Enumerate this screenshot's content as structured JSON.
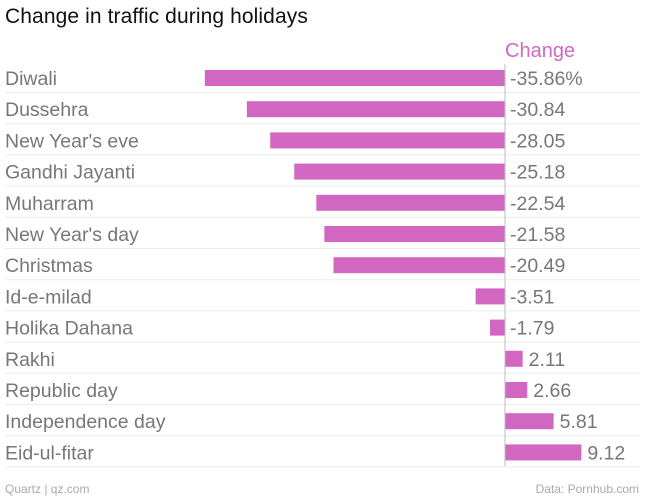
{
  "chart_data": {
    "type": "bar",
    "orientation": "horizontal",
    "title": "Change in traffic during holidays",
    "series_label": "Change",
    "categories": [
      "Diwali",
      "Dussehra",
      "New Year's eve",
      "Gandhi Jayanti",
      "Muharram",
      "New Year's day",
      "Christmas",
      "Id-e-milad",
      "Holika Dahana",
      "Rakhi",
      "Republic day",
      "Independence day",
      "Eid-ul-fitar"
    ],
    "values": [
      -35.86,
      -30.84,
      -28.05,
      -25.18,
      -22.54,
      -21.58,
      -20.49,
      -3.51,
      -1.79,
      2.11,
      2.66,
      5.81,
      9.12
    ],
    "value_labels": [
      "-35.86%",
      "-30.84",
      "-28.05",
      "-25.18",
      "-22.54",
      "-21.58",
      "-20.49",
      "-3.51",
      "-1.79",
      "2.11",
      "2.66",
      "5.81",
      "9.12"
    ],
    "xlim": [
      -36,
      10
    ],
    "bar_color": "#d267c1",
    "label_color": "#d267c1"
  },
  "footer": {
    "source_left": "Quartz | qz.com",
    "source_right": "Data: Pornhub.com"
  }
}
